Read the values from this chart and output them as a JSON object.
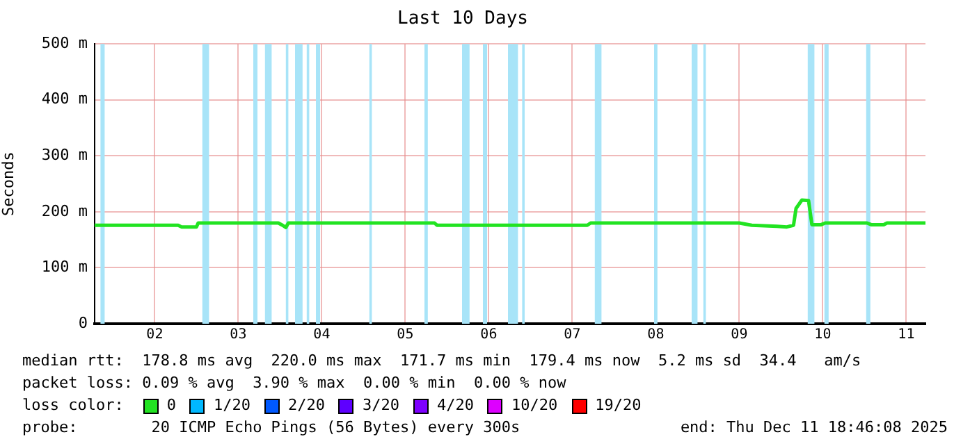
{
  "chart_data": {
    "type": "line",
    "title": "Last 10 Days",
    "ylabel": "Seconds",
    "x": [
      1.78,
      2.78,
      2.82,
      3.0,
      3.02,
      3.98,
      4.03,
      4.07,
      4.1,
      5.85,
      5.88,
      7.68,
      7.72,
      9.5,
      9.65,
      9.95,
      10.07,
      10.15,
      10.18,
      10.25,
      10.33,
      10.37,
      10.48,
      10.53,
      11.03,
      11.08,
      11.23,
      11.27,
      11.73
    ],
    "series": [
      {
        "name": "0",
        "color": "#22e322",
        "values": [
          176,
          176,
          173,
          173,
          180,
          180,
          176,
          172,
          180,
          180,
          176,
          176,
          180,
          180,
          176,
          174,
          173,
          176,
          206,
          221,
          220,
          177,
          177,
          180,
          180,
          177,
          177,
          180,
          180
        ]
      },
      {
        "name": "1/20",
        "color": "#00b8ff",
        "values": [
          null,
          null,
          null,
          null,
          null,
          null,
          null,
          null,
          null,
          null,
          null,
          null,
          null,
          null,
          null,
          null,
          null,
          null,
          null,
          null,
          null,
          null,
          null,
          null,
          null,
          null,
          null,
          null,
          null
        ]
      },
      {
        "name": "2/20",
        "color": "#0059ff",
        "values": [
          null,
          null,
          null,
          null,
          null,
          null,
          null,
          null,
          null,
          null,
          null,
          null,
          null,
          null,
          null,
          null,
          null,
          null,
          null,
          null,
          null,
          null,
          null,
          null,
          null,
          null,
          null,
          null,
          null
        ]
      },
      {
        "name": "3/20",
        "color": "#5e00ff",
        "values": [
          null,
          null,
          null,
          null,
          null,
          null,
          null,
          null,
          null,
          null,
          null,
          null,
          null,
          null,
          null,
          null,
          null,
          null,
          null,
          null,
          null,
          null,
          null,
          null,
          null,
          null,
          null,
          null,
          null
        ]
      },
      {
        "name": "4/20",
        "color": "#7e00ff",
        "values": [
          null,
          null,
          null,
          null,
          null,
          null,
          null,
          null,
          null,
          null,
          null,
          null,
          null,
          null,
          null,
          null,
          null,
          null,
          null,
          null,
          null,
          null,
          null,
          null,
          null,
          null,
          null,
          null,
          null
        ]
      },
      {
        "name": "10/20",
        "color": "#dd00ff",
        "values": [
          null,
          null,
          null,
          null,
          null,
          null,
          null,
          null,
          null,
          null,
          null,
          null,
          null,
          null,
          null,
          null,
          null,
          null,
          null,
          null,
          null,
          null,
          null,
          null,
          null,
          null,
          null,
          null,
          null
        ]
      },
      {
        "name": "19/20",
        "color": "#ff0000",
        "values": [
          null,
          null,
          null,
          null,
          null,
          null,
          null,
          null,
          null,
          null,
          null,
          null,
          null,
          null,
          null,
          null,
          null,
          null,
          null,
          null,
          null,
          null,
          null,
          null,
          null,
          null,
          null,
          null,
          null
        ]
      }
    ],
    "xlim": [
      1.78,
      11.73
    ],
    "xticks": [
      {
        "value": 2.5,
        "label": "02"
      },
      {
        "value": 3.5,
        "label": "03"
      },
      {
        "value": 4.5,
        "label": "04"
      },
      {
        "value": 5.5,
        "label": "05"
      },
      {
        "value": 6.5,
        "label": "06"
      },
      {
        "value": 7.5,
        "label": "07"
      },
      {
        "value": 8.5,
        "label": "08"
      },
      {
        "value": 9.5,
        "label": "09"
      },
      {
        "value": 10.5,
        "label": "10"
      },
      {
        "value": 11.5,
        "label": "11"
      }
    ],
    "ylim": [
      0,
      500
    ],
    "yticks": [
      0,
      {
        "value": 100,
        "label": "100 m"
      },
      {
        "value": 200,
        "label": "200 m"
      },
      {
        "value": 300,
        "label": "300 m"
      },
      {
        "value": 400,
        "label": "400 m"
      },
      {
        "value": 500,
        "label": "500 m"
      }
    ],
    "grid": true,
    "legend": "bottom",
    "legend_title": "loss color:",
    "marker": "none",
    "line_style": "solid",
    "bands": [
      {
        "axis": "x",
        "from": 1.85,
        "to": 1.9,
        "color": "#a8e4f8"
      },
      {
        "axis": "x",
        "from": 3.07,
        "to": 3.15,
        "color": "#a8e4f8"
      },
      {
        "axis": "x",
        "from": 3.68,
        "to": 3.73,
        "color": "#a8e4f8"
      },
      {
        "axis": "x",
        "from": 3.82,
        "to": 3.9,
        "color": "#a8e4f8"
      },
      {
        "axis": "x",
        "from": 4.07,
        "to": 4.1,
        "color": "#a8e4f8"
      },
      {
        "axis": "x",
        "from": 4.18,
        "to": 4.27,
        "color": "#a8e4f8"
      },
      {
        "axis": "x",
        "from": 4.32,
        "to": 4.35,
        "color": "#a8e4f8"
      },
      {
        "axis": "x",
        "from": 4.43,
        "to": 4.48,
        "color": "#a8e4f8"
      },
      {
        "axis": "x",
        "from": 5.07,
        "to": 5.1,
        "color": "#a8e4f8"
      },
      {
        "axis": "x",
        "from": 5.73,
        "to": 5.77,
        "color": "#a8e4f8"
      },
      {
        "axis": "x",
        "from": 6.18,
        "to": 6.27,
        "color": "#a8e4f8"
      },
      {
        "axis": "x",
        "from": 6.43,
        "to": 6.48,
        "color": "#a8e4f8"
      },
      {
        "axis": "x",
        "from": 6.73,
        "to": 6.85,
        "color": "#a8e4f8"
      },
      {
        "axis": "x",
        "from": 6.9,
        "to": 6.93,
        "color": "#a8e4f8"
      },
      {
        "axis": "x",
        "from": 7.77,
        "to": 7.85,
        "color": "#a8e4f8"
      },
      {
        "axis": "x",
        "from": 8.48,
        "to": 8.52,
        "color": "#a8e4f8"
      },
      {
        "axis": "x",
        "from": 8.93,
        "to": 9.0,
        "color": "#a8e4f8"
      },
      {
        "axis": "x",
        "from": 9.07,
        "to": 9.1,
        "color": "#a8e4f8"
      },
      {
        "axis": "x",
        "from": 10.32,
        "to": 10.4,
        "color": "#a8e4f8"
      },
      {
        "axis": "x",
        "from": 10.52,
        "to": 10.57,
        "color": "#a8e4f8"
      },
      {
        "axis": "x",
        "from": 11.02,
        "to": 11.07,
        "color": "#a8e4f8"
      }
    ],
    "annotations": [
      "median rtt:  178.8 ms avg  220.0 ms max  171.7 ms min  179.4 ms now  5.2 ms sd  34.4   am/s",
      "packet loss: 0.09 % avg  3.90 % max  0.00 % min  0.00 % now",
      "probe:        20 ICMP Echo Pings (56 Bytes) every 300s",
      "end: Thu Dec 11 18:46:08 2025"
    ]
  }
}
